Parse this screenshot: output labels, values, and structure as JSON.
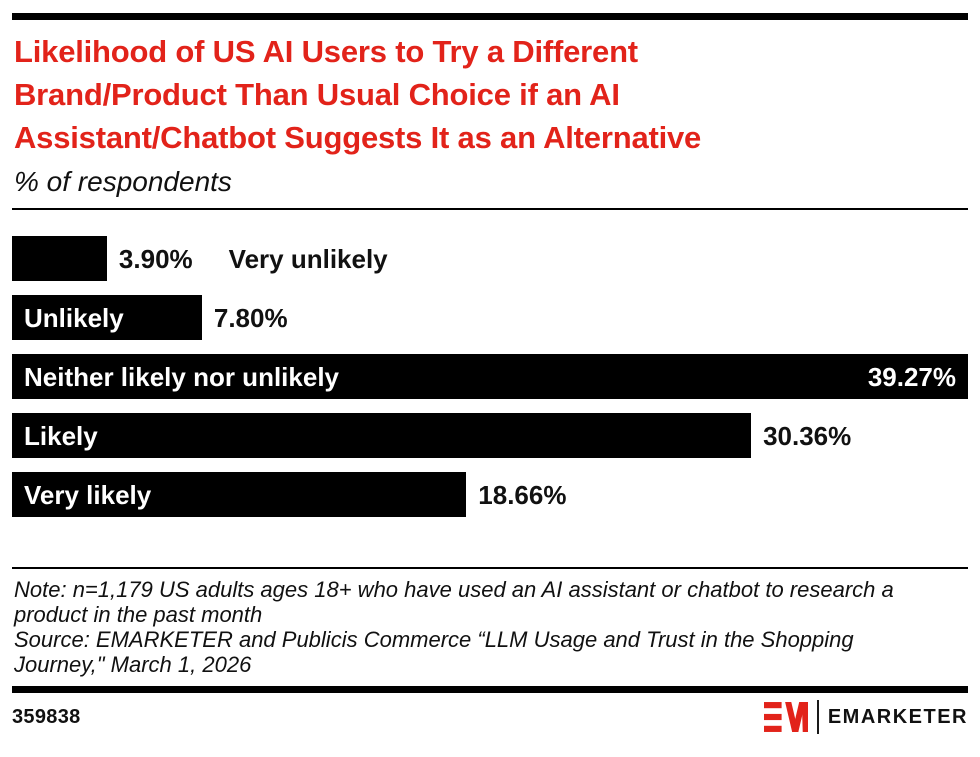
{
  "page": {
    "title_lines": [
      "Likelihood of US AI Users to Try a Different",
      "Brand/Product Than Usual Choice if an AI",
      "Assistant/Chatbot Suggests It as an Alternative"
    ],
    "subtitle": "% of respondents"
  },
  "chart_data": {
    "type": "bar",
    "orientation": "horizontal",
    "title": "Likelihood of US AI Users to Try a Different Brand/Product Than Usual Choice if an AI Assistant/Chatbot Suggests It as an Alternative",
    "subtitle": "% of respondents",
    "categories": [
      "Very unlikely",
      "Unlikely",
      "Neither likely nor unlikely",
      "Likely",
      "Very likely"
    ],
    "values": [
      3.9,
      7.8,
      39.27,
      30.36,
      18.66
    ],
    "value_labels": [
      "3.90%",
      "7.80%",
      "39.27%",
      "30.36%",
      "18.66%"
    ],
    "xlim": [
      0,
      39.27
    ],
    "grid": false,
    "legend": "none",
    "bar_color": "#000000",
    "bars": [
      {
        "label": "Very unlikely",
        "value": 3.9,
        "display": "3.90%",
        "label_inside": false,
        "value_inside": false
      },
      {
        "label": "Unlikely",
        "value": 7.8,
        "display": "7.80%",
        "label_inside": true,
        "value_inside": false
      },
      {
        "label": "Neither likely nor unlikely",
        "value": 39.27,
        "display": "39.27%",
        "label_inside": true,
        "value_inside": true
      },
      {
        "label": "Likely",
        "value": 30.36,
        "display": "30.36%",
        "label_inside": true,
        "value_inside": false
      },
      {
        "label": "Very likely",
        "value": 18.66,
        "display": "18.66%",
        "label_inside": true,
        "value_inside": false
      }
    ]
  },
  "notes": {
    "lines": [
      "Note: n=1,179 US adults ages 18+ who have used an AI assistant or chatbot to research a",
      "product in the past month",
      "Source: EMARKETER and Publicis Commerce “LLM Usage and Trust in the Shopping",
      "Journey,\" March 1, 2026"
    ]
  },
  "footer": {
    "chart_id": "359838",
    "brand_wordmark": "EMARKETER",
    "brand_monogram": "EM"
  },
  "colors": {
    "accent_red": "#E2231A",
    "bar_black": "#000000",
    "text_black": "#111111"
  }
}
